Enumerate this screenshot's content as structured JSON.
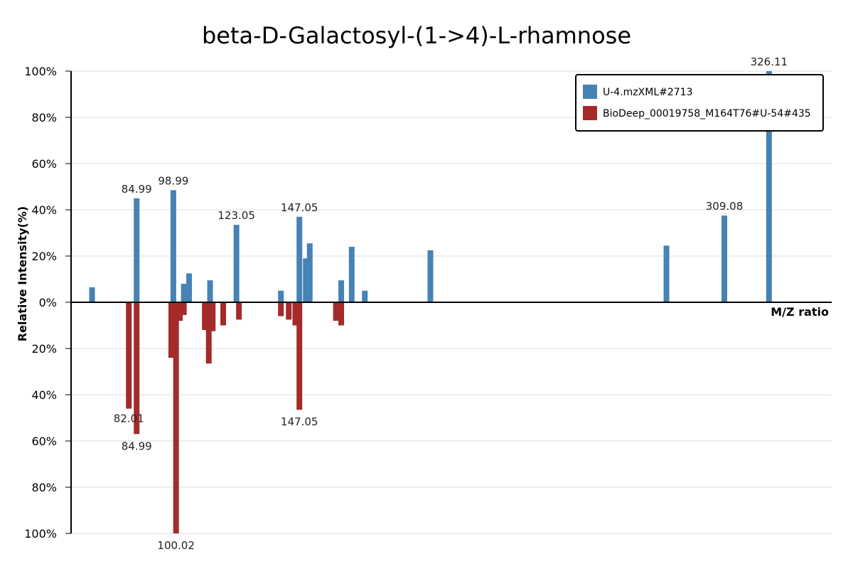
{
  "chart_data": {
    "type": "bar",
    "title": "beta-D-Galactosyl-(1->4)-L-rhamnose",
    "xlabel": "M/Z ratio",
    "ylabel": "Relative Intensity(%)",
    "xlim": [
      60,
      350
    ],
    "ylim": [
      -100,
      100
    ],
    "y_tick_values": [
      100,
      80,
      60,
      40,
      20,
      0,
      -20,
      -40,
      -60,
      -80,
      -100
    ],
    "y_tick_labels": [
      "100%",
      "80%",
      "60%",
      "40%",
      "20%",
      "0%",
      "20%",
      "40%",
      "60%",
      "80%",
      "100%"
    ],
    "grid": true,
    "legend_position": "top-right",
    "series": [
      {
        "name": "U-4.mzXML#2713",
        "color": "#4682b4",
        "direction": "up",
        "points": [
          {
            "mz": 68.0,
            "intensity": 6.5
          },
          {
            "mz": 84.99,
            "intensity": 45,
            "label": "84.99"
          },
          {
            "mz": 98.99,
            "intensity": 48.5,
            "label": "98.99"
          },
          {
            "mz": 103.0,
            "intensity": 8
          },
          {
            "mz": 105.0,
            "intensity": 12.5
          },
          {
            "mz": 113.0,
            "intensity": 9.5
          },
          {
            "mz": 123.05,
            "intensity": 33.5,
            "label": "123.05"
          },
          {
            "mz": 140.0,
            "intensity": 5
          },
          {
            "mz": 147.05,
            "intensity": 37,
            "label": "147.05"
          },
          {
            "mz": 149.5,
            "intensity": 19
          },
          {
            "mz": 151.0,
            "intensity": 25.5
          },
          {
            "mz": 163.0,
            "intensity": 9.5
          },
          {
            "mz": 167.0,
            "intensity": 24
          },
          {
            "mz": 172.0,
            "intensity": 5
          },
          {
            "mz": 197.0,
            "intensity": 22.5
          },
          {
            "mz": 287.0,
            "intensity": 24.5
          },
          {
            "mz": 309.08,
            "intensity": 37.5,
            "label": "309.08"
          },
          {
            "mz": 326.11,
            "intensity": 100,
            "label": "326.11"
          }
        ]
      },
      {
        "name": "BioDeep_00019758_M164T76#U-54#435",
        "color": "#a52a2a",
        "direction": "down",
        "points": [
          {
            "mz": 82.01,
            "intensity": 46,
            "label": "82.01"
          },
          {
            "mz": 84.99,
            "intensity": 57,
            "label": "84.99"
          },
          {
            "mz": 98.2,
            "intensity": 24
          },
          {
            "mz": 100.02,
            "intensity": 100,
            "label": "100.02"
          },
          {
            "mz": 101.5,
            "intensity": 8
          },
          {
            "mz": 103.0,
            "intensity": 5.5
          },
          {
            "mz": 111.0,
            "intensity": 12
          },
          {
            "mz": 112.5,
            "intensity": 26.5
          },
          {
            "mz": 114.0,
            "intensity": 12.5
          },
          {
            "mz": 118.0,
            "intensity": 10
          },
          {
            "mz": 124.0,
            "intensity": 7.5
          },
          {
            "mz": 140.0,
            "intensity": 6
          },
          {
            "mz": 143.0,
            "intensity": 7.5
          },
          {
            "mz": 145.5,
            "intensity": 10
          },
          {
            "mz": 147.05,
            "intensity": 46.5,
            "label": "147.05"
          },
          {
            "mz": 161.0,
            "intensity": 8
          },
          {
            "mz": 163.0,
            "intensity": 10
          }
        ]
      }
    ]
  }
}
